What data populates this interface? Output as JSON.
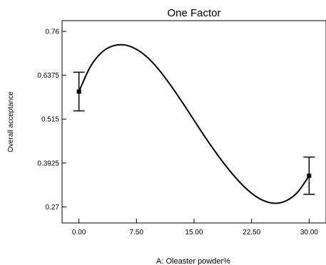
{
  "chart_data": {
    "type": "line",
    "title": "One Factor",
    "xlabel": "A: Oleaster powder%",
    "ylabel": "Overall acceptance",
    "xlim": [
      -2.2,
      32.2
    ],
    "ylim": [
      0.225,
      0.79
    ],
    "x_ticks": [
      0,
      7.5,
      15,
      22.5,
      30
    ],
    "x_tick_labels": [
      "0.00",
      "7.50",
      "15.00",
      "22.50",
      "30.00"
    ],
    "y_ticks": [
      0.27,
      0.3925,
      0.515,
      0.6375,
      0.76
    ],
    "y_tick_labels": [
      "0.27",
      "0.3925",
      "0.515",
      "0.6375",
      "0.76"
    ],
    "grid": false,
    "series": [
      {
        "type": "curve",
        "x": [
          0,
          1.5,
          3,
          4.5,
          6,
          7.5,
          9,
          10.5,
          12,
          13.5,
          15,
          16.5,
          18,
          19.5,
          21,
          22.5,
          24,
          25.5,
          27,
          28.5,
          30
        ],
        "y": [
          0.592,
          0.662,
          0.702,
          0.72,
          0.722,
          0.71,
          0.686,
          0.651,
          0.608,
          0.561,
          0.512,
          0.463,
          0.417,
          0.375,
          0.338,
          0.308,
          0.288,
          0.28,
          0.287,
          0.311,
          0.357
        ]
      }
    ],
    "points": [
      {
        "x": 0,
        "y": 0.592,
        "err_low": 0.538,
        "err_high": 0.646
      },
      {
        "x": 30,
        "y": 0.357,
        "err_low": 0.305,
        "err_high": 0.409
      }
    ]
  }
}
